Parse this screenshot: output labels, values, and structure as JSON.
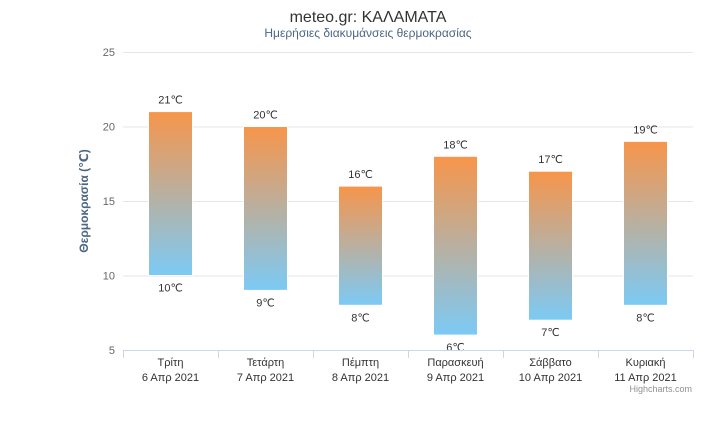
{
  "chart_data": {
    "type": "bar",
    "title": "meteo.gr: ΚΑΛΑΜΑΤΑ",
    "subtitle": "Ημερήσιες διακυμάνσεις θερμοκρασίας",
    "ylabel": "Θερμοκρασία (℃)",
    "ylim": [
      5,
      25
    ],
    "yticks": [
      "5",
      "10",
      "15",
      "20",
      "25"
    ],
    "grid": true,
    "categories": [
      [
        "Τρίτη",
        "6 Απρ 2021"
      ],
      [
        "Τετάρτη",
        "7 Απρ 2021"
      ],
      [
        "Πέμπτη",
        "8 Απρ 2021"
      ],
      [
        "Παρασκευή",
        "9 Απρ 2021"
      ],
      [
        "Σάββατο",
        "10 Απρ 2021"
      ],
      [
        "Κυριακή",
        "11 Απρ 2021"
      ]
    ],
    "low": [
      10,
      9,
      8,
      6,
      7,
      8
    ],
    "high": [
      21,
      20,
      16,
      18,
      17,
      19
    ],
    "low_labels": [
      "10℃",
      "9℃",
      "8℃",
      "6℃",
      "7℃",
      "8℃"
    ],
    "high_labels": [
      "21℃",
      "20℃",
      "16℃",
      "18℃",
      "17℃",
      "19℃"
    ],
    "gradient_colors": {
      "top": "#f7954a",
      "bottom": "#7ccaf5"
    },
    "credits": "Highcharts.com"
  }
}
